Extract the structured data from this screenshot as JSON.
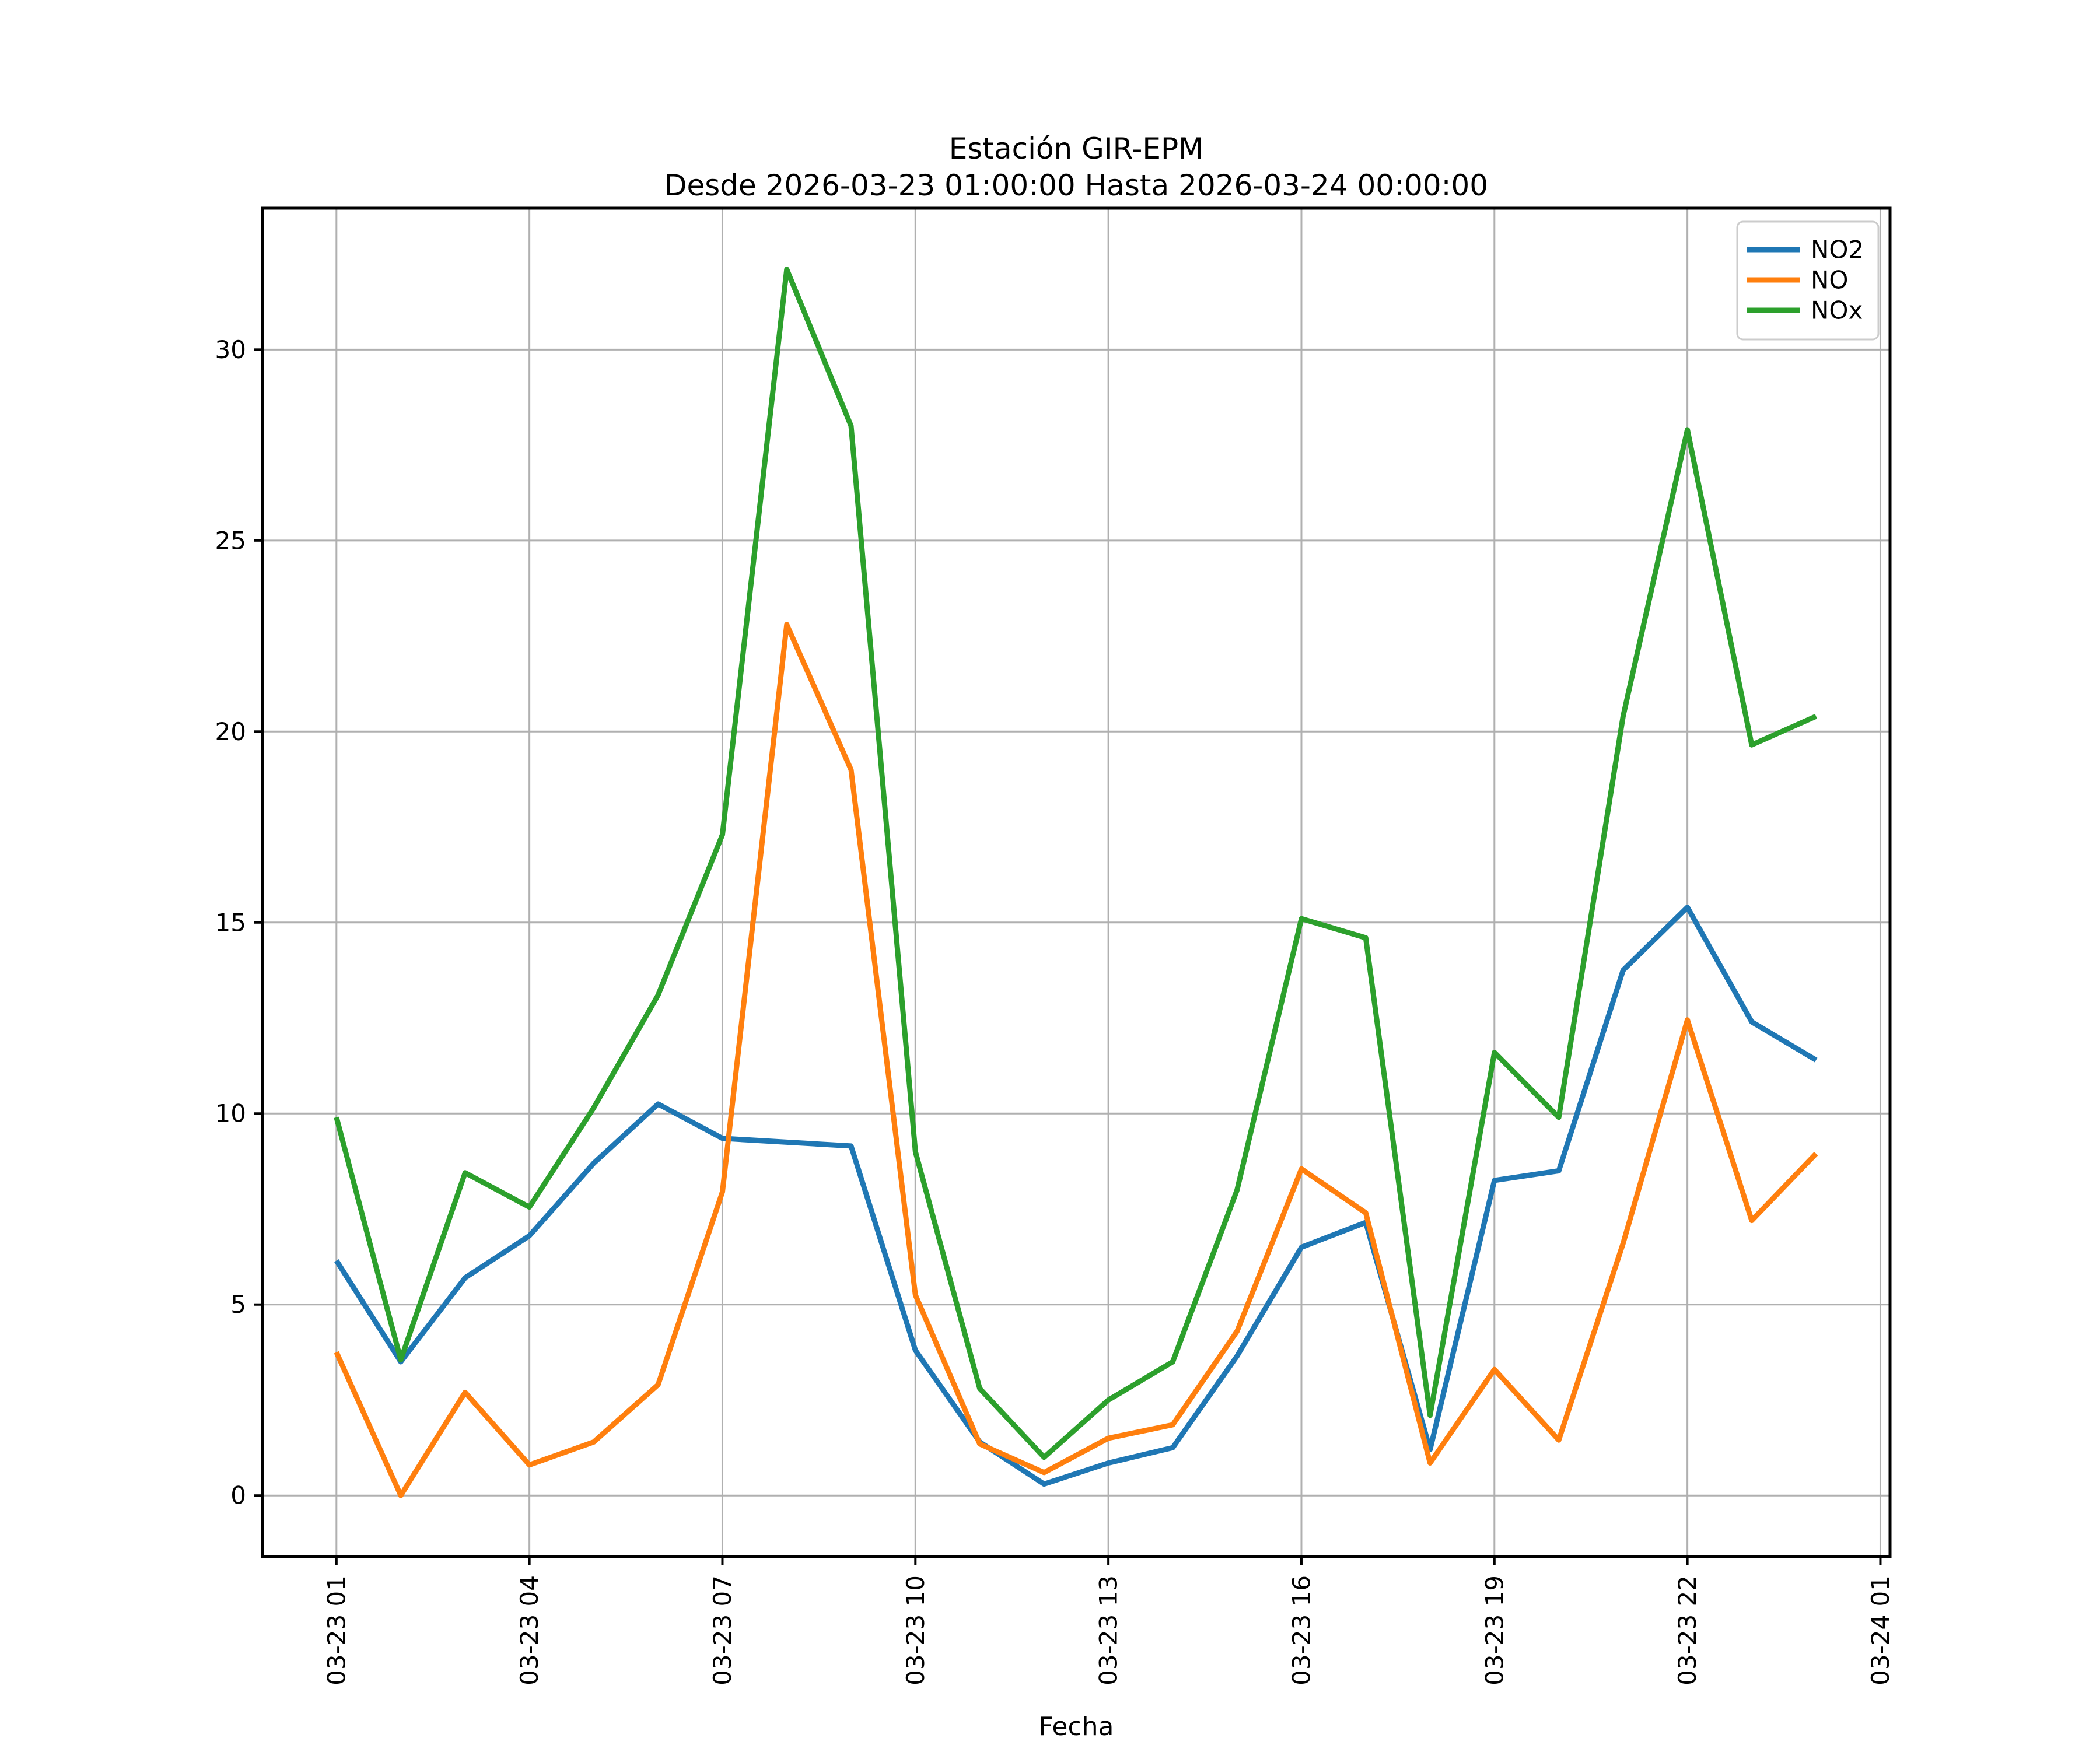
{
  "title": {
    "line1": "Estación GIR-EPM",
    "line2": "Desde 2026-03-23 01:00:00 Hasta 2026-03-24 00:00:00"
  },
  "chart_data": {
    "type": "line",
    "title": "Estación GIR-EPM",
    "subtitle": "Desde 2026-03-23 01:00:00 Hasta 2026-03-24 00:00:00",
    "xlabel": "Fecha",
    "ylabel": "",
    "x": [
      "03-23 01:00",
      "03-23 02:00",
      "03-23 03:00",
      "03-23 04:00",
      "03-23 05:00",
      "03-23 06:00",
      "03-23 07:00",
      "03-23 08:00",
      "03-23 09:00",
      "03-23 10:00",
      "03-23 11:00",
      "03-23 12:00",
      "03-23 13:00",
      "03-23 14:00",
      "03-23 15:00",
      "03-23 16:00",
      "03-23 17:00",
      "03-23 18:00",
      "03-23 19:00",
      "03-23 20:00",
      "03-23 21:00",
      "03-23 22:00",
      "03-23 23:00",
      "03-24 00:00"
    ],
    "series": [
      {
        "name": "NO2",
        "color": "#1f77b4",
        "values": [
          6.15,
          3.5,
          5.7,
          6.8,
          8.7,
          10.25,
          9.35,
          9.25,
          9.15,
          3.8,
          1.4,
          0.3,
          0.85,
          1.25,
          3.65,
          6.5,
          7.15,
          1.2,
          8.25,
          8.5,
          13.75,
          15.4,
          12.4,
          11.4
        ]
      },
      {
        "name": "NO",
        "color": "#ff7f0e",
        "values": [
          3.75,
          0.0,
          2.7,
          0.8,
          1.4,
          2.9,
          7.95,
          22.8,
          19.0,
          5.25,
          1.35,
          0.6,
          1.5,
          1.85,
          4.3,
          8.55,
          7.4,
          0.85,
          3.3,
          1.45,
          6.6,
          12.45,
          7.2,
          8.95
        ]
      },
      {
        "name": "NOx",
        "color": "#2ca02c",
        "values": [
          9.9,
          3.55,
          8.45,
          7.55,
          10.15,
          13.1,
          17.3,
          32.1,
          28.0,
          9.0,
          2.8,
          1.0,
          2.5,
          3.5,
          8.0,
          15.1,
          14.6,
          2.1,
          11.6,
          9.9,
          20.4,
          27.9,
          19.65,
          20.4
        ]
      }
    ],
    "x_tick_positions": [
      0,
      3,
      6,
      9,
      12,
      15,
      18,
      21,
      24
    ],
    "x_tick_labels": [
      "03-23 01",
      "03-23 04",
      "03-23 07",
      "03-23 10",
      "03-23 13",
      "03-23 16",
      "03-23 19",
      "03-23 22",
      "03-24 01"
    ],
    "yticks": [
      0,
      5,
      10,
      15,
      20,
      25,
      30
    ],
    "ylim": [
      -1.6,
      33.7
    ],
    "grid": true,
    "grid_color": "#b0b0b0",
    "axes_edge_color": "#000000",
    "legend_position": "upper right",
    "legend_border_color": "#cccccc",
    "background": "#ffffff"
  }
}
